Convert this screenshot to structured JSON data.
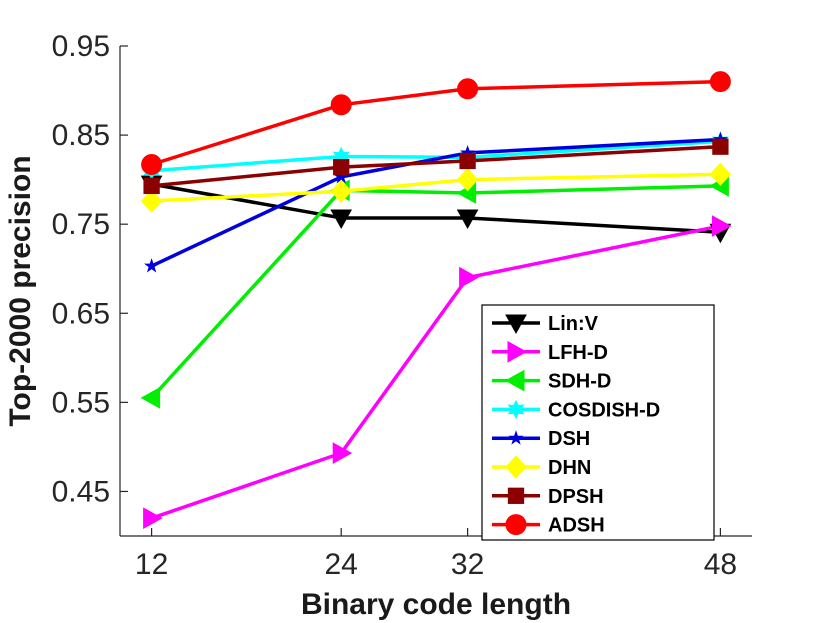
{
  "chart_data": {
    "type": "line",
    "xlabel": "Binary code length",
    "ylabel": "Top-2000 precision",
    "x": [
      12,
      24,
      32,
      48
    ],
    "x_tick_labels": [
      "12",
      "24",
      "32",
      "48"
    ],
    "xlim": [
      10,
      50
    ],
    "ylim": [
      0.4,
      0.95
    ],
    "y_ticks": [
      0.45,
      0.55,
      0.65,
      0.75,
      0.85,
      0.95
    ],
    "y_tick_labels": [
      "0.45",
      "0.55",
      "0.65",
      "0.75",
      "0.85",
      "0.95"
    ],
    "grid": false,
    "legend_position": "lower-right",
    "series": [
      {
        "name": "Lin:V",
        "color": "#000000",
        "marker": "triangle-down",
        "values": [
          0.795,
          0.757,
          0.757,
          0.741
        ]
      },
      {
        "name": "LFH-D",
        "color": "#ff00ff",
        "marker": "triangle-right",
        "values": [
          0.42,
          0.493,
          0.69,
          0.748
        ]
      },
      {
        "name": "SDH-D",
        "color": "#00ee00",
        "marker": "triangle-left",
        "values": [
          0.555,
          0.788,
          0.785,
          0.793
        ]
      },
      {
        "name": "COSDISH-D",
        "color": "#00ffff",
        "marker": "hexagram",
        "values": [
          0.81,
          0.826,
          0.825,
          0.843
        ]
      },
      {
        "name": "DSH",
        "color": "#0000dd",
        "marker": "pentagram",
        "values": [
          0.703,
          0.803,
          0.83,
          0.845
        ]
      },
      {
        "name": "DHN",
        "color": "#ffff00",
        "marker": "diamond",
        "values": [
          0.776,
          0.787,
          0.8,
          0.806
        ]
      },
      {
        "name": "DPSH",
        "color": "#8b0000",
        "marker": "square",
        "values": [
          0.793,
          0.814,
          0.821,
          0.837
        ]
      },
      {
        "name": "ADSH",
        "color": "#ff0000",
        "marker": "circle",
        "values": [
          0.817,
          0.884,
          0.902,
          0.91
        ]
      }
    ]
  }
}
